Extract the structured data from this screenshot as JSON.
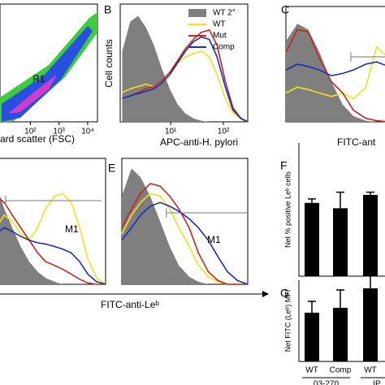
{
  "chart_data": [
    {
      "type": "density",
      "region_label": "R1",
      "xlabel": "ard scatter (FSC)",
      "log_x": true,
      "xlim": [
        8.7,
        22000
      ],
      "xticks": [
        {
          "value": 100,
          "label": "10²"
        },
        {
          "value": 1000,
          "label": "10³"
        },
        {
          "value": 10000,
          "label": "10⁴"
        }
      ]
    },
    {
      "type": "line",
      "panel_label": "B",
      "ylabel": "Cell counts",
      "xlabel": "APC-anti-H. pylori",
      "log_x": true,
      "xlim": [
        1.1,
        290
      ],
      "ylim": [
        0,
        100
      ],
      "legend": "top-right",
      "xticks": [
        {
          "value": 10,
          "label": "10¹"
        },
        {
          "value": 100,
          "label": "10²"
        }
      ],
      "x": [
        1.2,
        1.7,
        2.4,
        3.4,
        4.8,
        6.8,
        9.6,
        13.5,
        19,
        27,
        38,
        54,
        76,
        108,
        152,
        215,
        290
      ],
      "series": [
        {
          "name": "WT 2°",
          "color": "#7f7f7f",
          "filled": true,
          "values": [
            60,
            85,
            90,
            80,
            65,
            45,
            28,
            15,
            7,
            3,
            1,
            0,
            0,
            0,
            0,
            0,
            0
          ]
        },
        {
          "name": "WT",
          "color": "#f2e21a",
          "values": [
            25,
            28,
            30,
            32,
            30,
            35,
            42,
            50,
            55,
            58,
            60,
            55,
            40,
            20,
            8,
            2,
            0
          ]
        },
        {
          "name": "Mut",
          "color": "#c4261d",
          "values": [
            20,
            22,
            25,
            28,
            30,
            35,
            42,
            52,
            62,
            70,
            76,
            78,
            65,
            35,
            12,
            3,
            0
          ]
        },
        {
          "name": "Comp",
          "color": "#1c2db5",
          "values": [
            20,
            22,
            24,
            26,
            28,
            33,
            40,
            50,
            60,
            68,
            72,
            70,
            55,
            30,
            10,
            3,
            0
          ]
        }
      ]
    },
    {
      "type": "line",
      "panel_label": "C",
      "xlabel": "FITC-ant",
      "log_x": true,
      "xlim": [
        1,
        40
      ],
      "ylim": [
        0,
        100
      ],
      "gate": [
        10,
        40
      ],
      "x": [
        1,
        1.5,
        2.2,
        3.3,
        5,
        7.5,
        11,
        17,
        25,
        38
      ],
      "series": [
        {
          "color": "#7f7f7f",
          "filled": true,
          "values": [
            70,
            85,
            80,
            60,
            35,
            15,
            5,
            1,
            0,
            0
          ]
        },
        {
          "color": "#f2e21a",
          "values": [
            25,
            30,
            28,
            25,
            22,
            25,
            20,
            30,
            65,
            55
          ]
        },
        {
          "color": "#c4261d",
          "values": [
            60,
            80,
            78,
            55,
            35,
            25,
            10,
            3,
            1,
            0
          ]
        },
        {
          "color": "#1c2db5",
          "values": [
            45,
            50,
            48,
            45,
            40,
            42,
            45,
            50,
            52,
            48
          ]
        }
      ]
    },
    {
      "type": "line",
      "xlabel": "FITC-anti-Leᵇ",
      "log_x": true,
      "xlim": [
        1,
        200
      ],
      "ylim": [
        0,
        100
      ],
      "gate": [
        1.6,
        164
      ],
      "gate_label": "M1",
      "x": [
        1,
        1.5,
        2.2,
        3.3,
        5,
        7.5,
        11,
        17,
        25,
        38,
        57,
        85,
        130,
        200
      ],
      "series": [
        {
          "color": "#7f7f7f",
          "filled": true,
          "values": [
            80,
            60,
            45,
            30,
            18,
            10,
            5,
            2,
            0,
            0,
            0,
            0,
            0,
            0
          ]
        },
        {
          "color": "#f2e21a",
          "values": [
            45,
            55,
            50,
            40,
            35,
            45,
            60,
            70,
            72,
            65,
            45,
            20,
            5,
            0
          ]
        },
        {
          "color": "#c4261d",
          "values": [
            70,
            65,
            55,
            45,
            35,
            25,
            18,
            15,
            12,
            8,
            4,
            1,
            0,
            0
          ]
        },
        {
          "color": "#1c2db5",
          "values": [
            40,
            45,
            42,
            38,
            35,
            33,
            32,
            30,
            28,
            25,
            18,
            8,
            2,
            0
          ]
        }
      ]
    },
    {
      "type": "line",
      "panel_label": "E",
      "log_x": true,
      "xlim": [
        1,
        200
      ],
      "ylim": [
        0,
        100
      ],
      "gate": [
        6.5,
        200
      ],
      "gate_label": "M1",
      "x": [
        1,
        1.5,
        2.2,
        3.3,
        5,
        7.5,
        11,
        17,
        25,
        38,
        57,
        85,
        130,
        200
      ],
      "series": [
        {
          "color": "#7f7f7f",
          "filled": true,
          "values": [
            70,
            92,
            85,
            70,
            50,
            30,
            15,
            6,
            2,
            0,
            0,
            0,
            0,
            0
          ]
        },
        {
          "color": "#f2e21a",
          "values": [
            40,
            55,
            65,
            72,
            70,
            60,
            45,
            30,
            15,
            6,
            2,
            0,
            0,
            0
          ]
        },
        {
          "color": "#c4261d",
          "values": [
            45,
            60,
            72,
            80,
            78,
            70,
            60,
            45,
            25,
            10,
            3,
            0,
            0,
            0
          ]
        },
        {
          "color": "#1c2db5",
          "values": [
            35,
            45,
            55,
            62,
            65,
            62,
            58,
            52,
            45,
            35,
            22,
            10,
            3,
            0
          ]
        }
      ]
    },
    {
      "type": "bar",
      "panel_label": "F",
      "ylabel": "Net % positive Leᵇ cells",
      "ylim": [
        0,
        100
      ],
      "color": "#000000",
      "categories": [
        null,
        null,
        null
      ],
      "values": [
        55,
        51,
        61
      ],
      "errors": [
        3,
        12,
        2
      ]
    },
    {
      "type": "bar",
      "panel_label": "G",
      "ylabel": "Net FITC (Leᵇ) MFI",
      "ylim": [
        0,
        50
      ],
      "color": "#000000",
      "categories": [
        "WT",
        "Comp",
        "WT"
      ],
      "values": [
        30,
        33,
        45
      ],
      "errors": [
        7,
        11,
        12
      ],
      "groups": [
        "03-270",
        "IP"
      ]
    }
  ]
}
